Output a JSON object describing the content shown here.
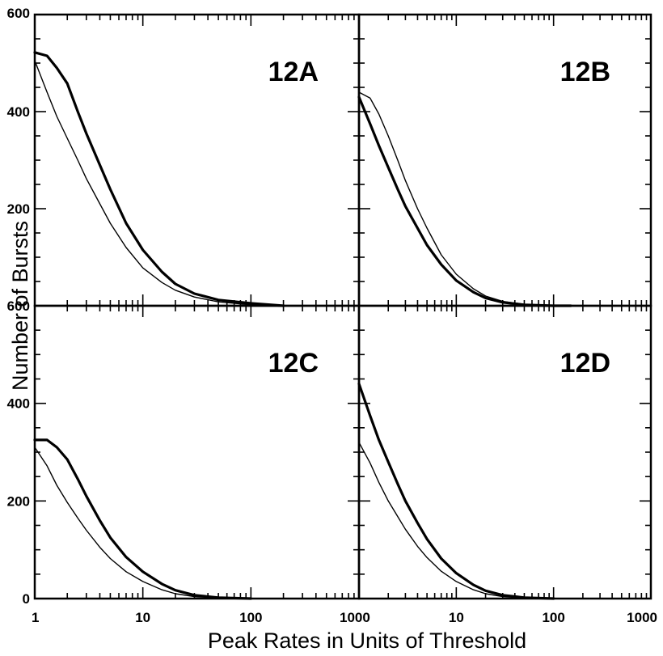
{
  "chart_data": {
    "type": "line",
    "xlabel": "Peak Rates in Units of Threshold",
    "ylabel": "Number of Bursts",
    "x_scale": "log",
    "xlim": [
      1,
      1000
    ],
    "ylim": [
      0,
      600
    ],
    "x_tick_labels": [
      "1",
      "10",
      "100",
      "1000"
    ],
    "y_tick_labels": [
      "0",
      "200",
      "400",
      "600"
    ],
    "panels": [
      {
        "label": "12A",
        "series": [
          {
            "style": "thick",
            "x": [
              1,
              1.3,
              1.6,
              2,
              2.5,
              3,
              4,
              5,
              7,
              10,
              15,
              20,
              30,
              50,
              100,
              200
            ],
            "y": [
              522,
              515,
              490,
              458,
              400,
              355,
              290,
              240,
              170,
              115,
              70,
              45,
              25,
              12,
              5,
              0
            ]
          },
          {
            "style": "thin",
            "x": [
              1,
              1.3,
              1.6,
              2,
              2.5,
              3,
              4,
              5,
              7,
              10,
              15,
              20,
              30,
              50,
              100,
              150
            ],
            "y": [
              505,
              440,
              390,
              345,
              300,
              262,
              210,
              170,
              120,
              78,
              48,
              32,
              18,
              8,
              2,
              0
            ]
          }
        ]
      },
      {
        "label": "12B",
        "series": [
          {
            "style": "thin",
            "x": [
              1,
              1.3,
              1.6,
              2,
              2.5,
              3,
              4,
              5,
              7,
              10,
              15,
              20,
              30,
              50,
              100,
              150
            ],
            "y": [
              440,
              428,
              395,
              350,
              300,
              258,
              200,
              160,
              105,
              65,
              35,
              20,
              9,
              3,
              1,
              0
            ]
          },
          {
            "style": "thick",
            "x": [
              1,
              1.3,
              1.6,
              2,
              2.5,
              3,
              4,
              5,
              7,
              10,
              15,
              20,
              30,
              50,
              100,
              150
            ],
            "y": [
              430,
              375,
              330,
              285,
              240,
              205,
              160,
              125,
              85,
              52,
              28,
              16,
              7,
              2,
              0,
              0
            ]
          }
        ]
      },
      {
        "label": "12C",
        "series": [
          {
            "style": "thick",
            "x": [
              1,
              1.3,
              1.6,
              2,
              2.5,
              3,
              4,
              5,
              7,
              10,
              15,
              20,
              30,
              50,
              100
            ],
            "y": [
              325,
              325,
              310,
              285,
              245,
              210,
              160,
              125,
              85,
              55,
              30,
              17,
              7,
              2,
              0
            ]
          },
          {
            "style": "thin",
            "x": [
              1,
              1.3,
              1.6,
              2,
              2.5,
              3,
              4,
              5,
              7,
              10,
              15,
              20,
              30,
              50,
              100
            ],
            "y": [
              310,
              272,
              232,
              197,
              165,
              140,
              105,
              82,
              55,
              35,
              18,
              10,
              4,
              1,
              0
            ]
          }
        ]
      },
      {
        "label": "12D",
        "series": [
          {
            "style": "thick",
            "x": [
              1,
              1.3,
              1.6,
              2,
              2.5,
              3,
              4,
              5,
              7,
              10,
              15,
              20,
              30,
              50,
              100
            ],
            "y": [
              440,
              375,
              325,
              280,
              235,
              200,
              155,
              122,
              82,
              52,
              28,
              16,
              7,
              2,
              0
            ]
          },
          {
            "style": "thin",
            "x": [
              1,
              1.3,
              1.6,
              2,
              2.5,
              3,
              4,
              5,
              7,
              10,
              15,
              20,
              30,
              50,
              100
            ],
            "y": [
              320,
              278,
              238,
              200,
              168,
              142,
              107,
              84,
              56,
              35,
              18,
              10,
              4,
              1,
              0
            ]
          }
        ]
      }
    ]
  }
}
